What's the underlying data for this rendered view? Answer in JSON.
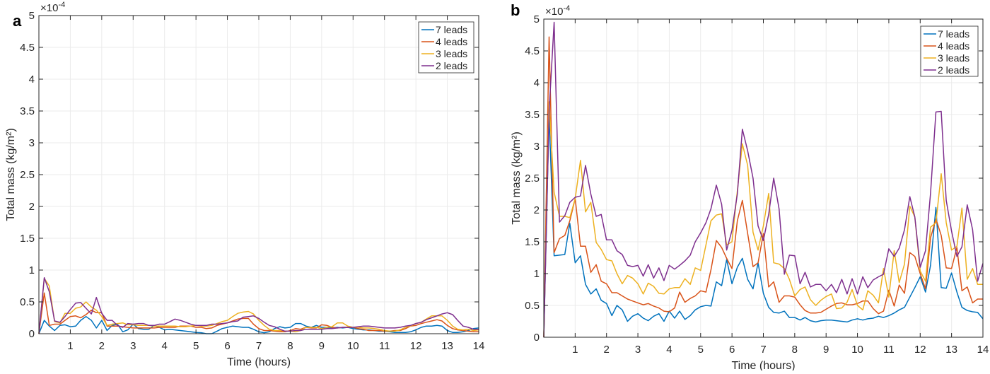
{
  "chart_data": [
    {
      "type": "line",
      "panel_label": "a",
      "xlabel": "Time (hours)",
      "ylabel": "Total mass (kg/m²)",
      "y_multiplier": "×10",
      "y_multiplier_exponent": "-4",
      "xlim": [
        0,
        14
      ],
      "ylim": [
        0,
        5
      ],
      "xticks": [
        "1",
        "2",
        "3",
        "4",
        "5",
        "6",
        "7",
        "8",
        "9",
        "10",
        "11",
        "12",
        "13",
        "14"
      ],
      "yticks": [
        "0",
        "0.5",
        "1",
        "1.5",
        "2",
        "2.5",
        "3",
        "3.5",
        "4",
        "4.5",
        "5"
      ],
      "grid": true,
      "legend_position": "top-right",
      "x": [
        0,
        0.17,
        0.33,
        0.5,
        0.67,
        0.83,
        1,
        1.17,
        1.33,
        1.5,
        1.67,
        1.83,
        2,
        2.17,
        2.33,
        2.5,
        2.67,
        2.83,
        3,
        3.17,
        3.33,
        3.5,
        3.67,
        3.83,
        4,
        4.17,
        4.33,
        4.5,
        4.67,
        4.83,
        5,
        5.17,
        5.33,
        5.5,
        5.67,
        5.83,
        6,
        6.17,
        6.33,
        6.5,
        6.67,
        6.83,
        7,
        7.17,
        7.33,
        7.5,
        7.67,
        7.83,
        8,
        8.17,
        8.33,
        8.5,
        8.67,
        8.83,
        9,
        9.17,
        9.33,
        9.5,
        9.67,
        9.83,
        10,
        10.17,
        10.33,
        10.5,
        10.67,
        10.83,
        11,
        11.17,
        11.33,
        11.5,
        11.67,
        11.83,
        12,
        12.17,
        12.33,
        12.5,
        12.67,
        12.83,
        13,
        13.17,
        13.33,
        13.5,
        13.67,
        13.83,
        14
      ],
      "series": [
        {
          "name": "7 leads",
          "color": "#0072BD",
          "values": [
            0,
            0.21,
            0.12,
            0.05,
            0.13,
            0.14,
            0.11,
            0.12,
            0.21,
            0.27,
            0.21,
            0.09,
            0.21,
            0.05,
            0.13,
            0.15,
            0.03,
            0.06,
            0.15,
            0.08,
            0.07,
            0.07,
            0.13,
            0.1,
            0.06,
            0.07,
            0.06,
            0.05,
            0.04,
            0.03,
            0.02,
            0.015,
            0.0,
            0.0,
            0.04,
            0.08,
            0.1,
            0.12,
            0.11,
            0.1,
            0.1,
            0.07,
            0.03,
            0.015,
            0.03,
            0.08,
            0.11,
            0.09,
            0.1,
            0.16,
            0.16,
            0.12,
            0.1,
            0.13,
            0.1,
            0.1,
            0.09,
            0.1,
            0.09,
            0.1,
            0.08,
            0.07,
            0.06,
            0.06,
            0.05,
            0.04,
            0.04,
            0.03,
            0.02,
            0.02,
            0.02,
            0.03,
            0.06,
            0.1,
            0.12,
            0.12,
            0.13,
            0.12,
            0.05,
            0.02,
            0.02,
            0.03,
            0.05,
            0.08,
            0.09
          ]
        },
        {
          "name": "4 leads",
          "color": "#D95319",
          "values": [
            0,
            0.64,
            0.13,
            0.15,
            0.15,
            0.21,
            0.27,
            0.28,
            0.25,
            0.3,
            0.37,
            0.33,
            0.33,
            0.12,
            0.12,
            0.12,
            0.11,
            0.1,
            0.09,
            0.09,
            0.09,
            0.09,
            0.09,
            0.1,
            0.1,
            0.1,
            0.1,
            0.12,
            0.12,
            0.12,
            0.1,
            0.1,
            0.08,
            0.09,
            0.13,
            0.15,
            0.17,
            0.2,
            0.23,
            0.24,
            0.24,
            0.15,
            0.08,
            0.05,
            0.05,
            0.04,
            0.03,
            0.03,
            0.05,
            0.08,
            0.07,
            0.1,
            0.09,
            0.09,
            0.14,
            0.13,
            0.1,
            0.09,
            0.1,
            0.1,
            0.1,
            0.08,
            0.07,
            0.05,
            0.05,
            0.05,
            0.04,
            0.04,
            0.05,
            0.05,
            0.08,
            0.12,
            0.13,
            0.16,
            0.18,
            0.2,
            0.22,
            0.2,
            0.13,
            0.08,
            0.06,
            0.05,
            0.04,
            0.03,
            0.03
          ]
        },
        {
          "name": "3 leads",
          "color": "#EDB120",
          "values": [
            0,
            0.87,
            0.75,
            0.19,
            0.17,
            0.32,
            0.32,
            0.4,
            0.42,
            0.5,
            0.42,
            0.37,
            0.27,
            0.13,
            0.15,
            0.16,
            0.17,
            0.14,
            0.14,
            0.13,
            0.13,
            0.13,
            0.12,
            0.12,
            0.12,
            0.12,
            0.12,
            0.11,
            0.11,
            0.12,
            0.13,
            0.12,
            0.12,
            0.13,
            0.16,
            0.19,
            0.21,
            0.27,
            0.32,
            0.34,
            0.35,
            0.31,
            0.21,
            0.13,
            0.07,
            0.05,
            0.05,
            0.04,
            0.04,
            0.03,
            0.05,
            0.1,
            0.1,
            0.1,
            0.08,
            0.1,
            0.11,
            0.17,
            0.17,
            0.12,
            0.1,
            0.1,
            0.09,
            0.09,
            0.08,
            0.07,
            0.05,
            0.04,
            0.04,
            0.06,
            0.1,
            0.12,
            0.16,
            0.18,
            0.23,
            0.28,
            0.28,
            0.28,
            0.21,
            0.12,
            0.07,
            0.06,
            0.07,
            0.05,
            0.06
          ]
        },
        {
          "name": "2 leads",
          "color": "#7E2F8E",
          "values": [
            0,
            0.88,
            0.66,
            0.2,
            0.18,
            0.27,
            0.38,
            0.48,
            0.49,
            0.4,
            0.31,
            0.57,
            0.32,
            0.21,
            0.21,
            0.13,
            0.1,
            0.16,
            0.15,
            0.16,
            0.16,
            0.13,
            0.13,
            0.15,
            0.15,
            0.19,
            0.23,
            0.21,
            0.18,
            0.15,
            0.13,
            0.13,
            0.13,
            0.15,
            0.15,
            0.16,
            0.17,
            0.19,
            0.2,
            0.26,
            0.27,
            0.28,
            0.24,
            0.18,
            0.13,
            0.11,
            0.07,
            0.04,
            0.04,
            0.05,
            0.05,
            0.07,
            0.07,
            0.07,
            0.07,
            0.08,
            0.08,
            0.09,
            0.1,
            0.1,
            0.1,
            0.11,
            0.12,
            0.12,
            0.11,
            0.1,
            0.09,
            0.09,
            0.09,
            0.1,
            0.12,
            0.13,
            0.16,
            0.18,
            0.22,
            0.25,
            0.28,
            0.31,
            0.33,
            0.3,
            0.21,
            0.12,
            0.1,
            0.07,
            0.07
          ]
        }
      ]
    },
    {
      "type": "line",
      "panel_label": "b",
      "xlabel": "Time (hours)",
      "ylabel": "Total mass (kg/m²)",
      "y_multiplier": "×10",
      "y_multiplier_exponent": "-4",
      "xlim": [
        0,
        14
      ],
      "ylim": [
        0,
        5
      ],
      "xticks": [
        "1",
        "2",
        "3",
        "4",
        "5",
        "6",
        "7",
        "8",
        "9",
        "10",
        "11",
        "12",
        "13",
        "14"
      ],
      "yticks": [
        "0",
        "0.5",
        "1",
        "1.5",
        "2",
        "2.5",
        "3",
        "3.5",
        "4",
        "4.5",
        "5"
      ],
      "grid": true,
      "legend_position": "top-right",
      "x": [
        0,
        0.17,
        0.33,
        0.5,
        0.67,
        0.83,
        1,
        1.17,
        1.33,
        1.5,
        1.67,
        1.83,
        2,
        2.17,
        2.33,
        2.5,
        2.67,
        2.83,
        3,
        3.17,
        3.33,
        3.5,
        3.67,
        3.83,
        4,
        4.17,
        4.33,
        4.5,
        4.67,
        4.83,
        5,
        5.17,
        5.33,
        5.5,
        5.67,
        5.83,
        6,
        6.17,
        6.33,
        6.5,
        6.67,
        6.83,
        7,
        7.17,
        7.33,
        7.5,
        7.67,
        7.83,
        8,
        8.17,
        8.33,
        8.5,
        8.67,
        8.83,
        9,
        9.17,
        9.33,
        9.5,
        9.67,
        9.83,
        10,
        10.17,
        10.33,
        10.5,
        10.67,
        10.83,
        11,
        11.17,
        11.33,
        11.5,
        11.67,
        11.83,
        12,
        12.17,
        12.33,
        12.5,
        12.67,
        12.83,
        13,
        13.17,
        13.33,
        13.5,
        13.67,
        13.83,
        14
      ],
      "series": [
        {
          "name": "7 leads",
          "color": "#0072BD",
          "values": [
            0,
            3.5,
            1.28,
            1.29,
            1.3,
            1.79,
            1.17,
            1.28,
            0.83,
            0.68,
            0.76,
            0.58,
            0.53,
            0.34,
            0.5,
            0.43,
            0.25,
            0.33,
            0.37,
            0.3,
            0.26,
            0.33,
            0.37,
            0.25,
            0.41,
            0.3,
            0.41,
            0.28,
            0.34,
            0.43,
            0.48,
            0.5,
            0.49,
            0.87,
            0.81,
            1.22,
            0.84,
            1.1,
            1.24,
            0.91,
            0.76,
            1.17,
            0.69,
            0.47,
            0.39,
            0.38,
            0.41,
            0.31,
            0.31,
            0.27,
            0.31,
            0.26,
            0.24,
            0.26,
            0.27,
            0.27,
            0.26,
            0.25,
            0.24,
            0.27,
            0.29,
            0.27,
            0.29,
            0.3,
            0.33,
            0.31,
            0.34,
            0.38,
            0.43,
            0.47,
            0.63,
            0.78,
            0.95,
            0.71,
            1.13,
            2.04,
            0.78,
            0.77,
            1.01,
            0.71,
            0.47,
            0.42,
            0.4,
            0.39,
            0.29
          ]
        },
        {
          "name": "4 leads",
          "color": "#D95319",
          "values": [
            0,
            4.72,
            1.33,
            1.55,
            1.6,
            1.83,
            2.18,
            1.43,
            1.43,
            1.02,
            1.14,
            0.88,
            0.84,
            0.7,
            0.7,
            0.65,
            0.6,
            0.57,
            0.54,
            0.51,
            0.53,
            0.49,
            0.46,
            0.41,
            0.4,
            0.46,
            0.71,
            0.55,
            0.61,
            0.65,
            0.73,
            0.71,
            1.06,
            1.52,
            1.41,
            1.24,
            1.08,
            1.83,
            2.15,
            1.63,
            1.11,
            1.17,
            1.63,
            0.79,
            0.87,
            0.55,
            0.65,
            0.65,
            0.63,
            0.51,
            0.42,
            0.38,
            0.38,
            0.39,
            0.44,
            0.49,
            0.53,
            0.54,
            0.51,
            0.51,
            0.53,
            0.57,
            0.57,
            0.45,
            0.37,
            0.41,
            0.74,
            0.49,
            0.82,
            0.69,
            1.33,
            1.27,
            1.0,
            0.76,
            1.56,
            1.86,
            1.6,
            1.09,
            1.08,
            1.41,
            0.73,
            0.79,
            0.54,
            0.6,
            0.6
          ]
        },
        {
          "name": "3 leads",
          "color": "#EDB120",
          "values": [
            0,
            3.7,
            2.28,
            1.9,
            1.9,
            1.88,
            2.18,
            2.78,
            1.97,
            2.12,
            1.49,
            1.38,
            1.22,
            1.2,
            1.0,
            0.84,
            0.97,
            0.93,
            0.84,
            0.68,
            0.85,
            0.8,
            0.69,
            0.68,
            0.76,
            0.78,
            0.78,
            0.92,
            0.83,
            1.09,
            1.05,
            1.45,
            1.83,
            1.92,
            1.94,
            1.45,
            1.5,
            2.3,
            3.04,
            2.7,
            1.65,
            1.37,
            1.75,
            2.26,
            1.17,
            1.15,
            1.08,
            0.91,
            0.65,
            0.75,
            0.79,
            0.59,
            0.5,
            0.58,
            0.64,
            0.68,
            0.45,
            0.46,
            0.55,
            0.75,
            0.5,
            0.43,
            0.73,
            0.66,
            0.54,
            1.08,
            0.63,
            1.36,
            0.86,
            1.15,
            2.06,
            1.89,
            1.04,
            0.88,
            1.73,
            1.8,
            2.57,
            1.8,
            1.37,
            1.43,
            2.03,
            0.91,
            1.08,
            0.83,
            0.83
          ]
        },
        {
          "name": "2 leads",
          "color": "#7E2F8E",
          "values": [
            0,
            3.55,
            4.95,
            1.81,
            1.91,
            2.12,
            2.2,
            2.22,
            2.7,
            2.25,
            1.9,
            1.93,
            1.53,
            1.53,
            1.36,
            1.3,
            1.13,
            1.11,
            1.13,
            0.96,
            1.14,
            0.93,
            1.09,
            0.89,
            1.13,
            1.07,
            1.13,
            1.2,
            1.29,
            1.5,
            1.64,
            1.8,
            2.02,
            2.39,
            2.09,
            1.37,
            1.68,
            2.25,
            3.27,
            2.93,
            2.5,
            1.75,
            1.52,
            1.93,
            2.5,
            2.02,
            0.99,
            1.29,
            1.28,
            0.84,
            1.02,
            0.79,
            0.83,
            0.83,
            0.73,
            0.83,
            0.7,
            0.91,
            0.68,
            0.92,
            0.68,
            0.95,
            0.78,
            0.9,
            0.95,
            0.99,
            1.39,
            1.27,
            1.4,
            1.69,
            2.21,
            1.89,
            1.1,
            1.36,
            2.26,
            3.54,
            3.55,
            2.15,
            1.67,
            1.27,
            1.42,
            2.08,
            1.69,
            0.88,
            1.16
          ]
        }
      ]
    }
  ]
}
